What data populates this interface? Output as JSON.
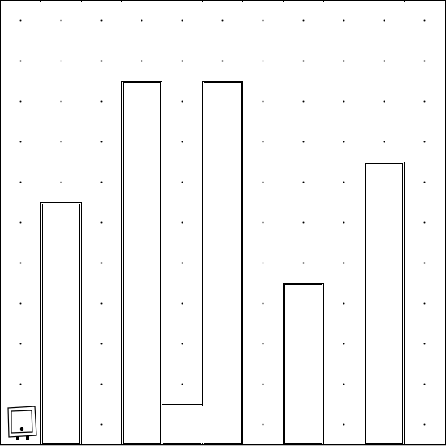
{
  "game": {
    "type": "maze-grid",
    "grid": {
      "columns": 11,
      "rows": 11,
      "dots": "center-of-each-cell"
    },
    "colors": {
      "background": "#ffffff",
      "wall": "#000000",
      "dot": "#000000"
    },
    "walls": [
      {
        "name": "wall-column-1",
        "col": 1,
        "top_row": 5,
        "bottom_row": 10
      },
      {
        "name": "wall-column-3",
        "col": 3,
        "top_row": 2,
        "bottom_row": 10
      },
      {
        "name": "wall-u-bottom",
        "col": 4,
        "top_row": 10,
        "bottom_row": 10
      },
      {
        "name": "wall-column-5",
        "col": 5,
        "top_row": 2,
        "bottom_row": 10
      },
      {
        "name": "wall-column-7",
        "col": 7,
        "top_row": 7,
        "bottom_row": 10
      },
      {
        "name": "wall-column-9",
        "col": 9,
        "top_row": 4,
        "bottom_row": 10
      }
    ],
    "player": {
      "icon": "robot-icon",
      "col": 0,
      "row": 10,
      "facing": "left"
    }
  }
}
